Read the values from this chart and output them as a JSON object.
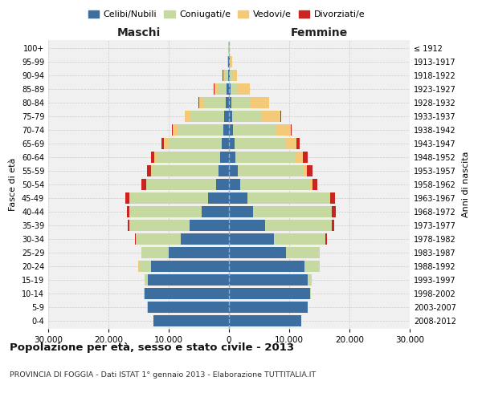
{
  "age_groups": [
    "0-4",
    "5-9",
    "10-14",
    "15-19",
    "20-24",
    "25-29",
    "30-34",
    "35-39",
    "40-44",
    "45-49",
    "50-54",
    "55-59",
    "60-64",
    "65-69",
    "70-74",
    "75-79",
    "80-84",
    "85-89",
    "90-94",
    "95-99",
    "100+"
  ],
  "birth_years": [
    "2008-2012",
    "2003-2007",
    "1998-2002",
    "1993-1997",
    "1988-1992",
    "1983-1987",
    "1978-1982",
    "1973-1977",
    "1968-1972",
    "1963-1967",
    "1958-1962",
    "1953-1957",
    "1948-1952",
    "1943-1947",
    "1938-1942",
    "1933-1937",
    "1928-1932",
    "1923-1927",
    "1918-1922",
    "1913-1917",
    "≤ 1912"
  ],
  "male_celibi": [
    12500,
    13500,
    14000,
    13500,
    13000,
    10000,
    8000,
    6500,
    4500,
    3500,
    2200,
    1700,
    1500,
    1200,
    1000,
    800,
    600,
    350,
    200,
    100,
    50
  ],
  "male_coniugati": [
    20,
    50,
    100,
    500,
    2000,
    4500,
    7500,
    10000,
    12000,
    13000,
    11500,
    11000,
    10500,
    9000,
    7500,
    5500,
    3500,
    1500,
    500,
    100,
    50
  ],
  "male_vedovi": [
    0,
    0,
    0,
    5,
    5,
    5,
    10,
    20,
    30,
    50,
    100,
    200,
    400,
    600,
    800,
    1000,
    900,
    600,
    300,
    100,
    30
  ],
  "male_divorziati": [
    0,
    0,
    0,
    10,
    20,
    50,
    150,
    300,
    400,
    600,
    700,
    700,
    600,
    400,
    200,
    100,
    40,
    30,
    20,
    10,
    5
  ],
  "female_celibi": [
    12000,
    13000,
    13500,
    13000,
    12500,
    9500,
    7500,
    6000,
    4000,
    3000,
    1900,
    1400,
    1100,
    900,
    700,
    500,
    400,
    250,
    150,
    80,
    30
  ],
  "female_coniugati": [
    20,
    50,
    150,
    700,
    2500,
    5500,
    8500,
    11000,
    13000,
    13500,
    11500,
    10800,
    10000,
    8500,
    7000,
    5000,
    3200,
    1200,
    400,
    100,
    30
  ],
  "female_vedovi": [
    0,
    0,
    0,
    5,
    5,
    10,
    20,
    50,
    100,
    250,
    400,
    700,
    1200,
    1800,
    2500,
    3000,
    3000,
    2000,
    800,
    300,
    80
  ],
  "female_divorziati": [
    0,
    0,
    0,
    10,
    30,
    80,
    200,
    400,
    600,
    800,
    900,
    900,
    800,
    500,
    250,
    120,
    60,
    40,
    20,
    10,
    5
  ],
  "color_celibi": "#3d6ea0",
  "color_coniugati": "#c5d9a0",
  "color_vedovi": "#f5c97a",
  "color_divorziati": "#cc2222",
  "bg_color": "#f0f0f0",
  "grid_color": "#cccccc",
  "title": "Popolazione per età, sesso e stato civile - 2013",
  "subtitle": "PROVINCIA DI FOGGIA - Dati ISTAT 1° gennaio 2013 - Elaborazione TUTTITALIA.IT",
  "ylabel_left": "Fasce di età",
  "ylabel_right": "Anni di nascita",
  "xlabel_left": "Maschi",
  "xlabel_right": "Femmine",
  "xlim": 30000,
  "xticks": [
    -30000,
    -20000,
    -10000,
    0,
    10000,
    20000,
    30000
  ],
  "xticklabels": [
    "30.000",
    "20.000",
    "10.000",
    "0",
    "10.000",
    "20.000",
    "30.000"
  ]
}
